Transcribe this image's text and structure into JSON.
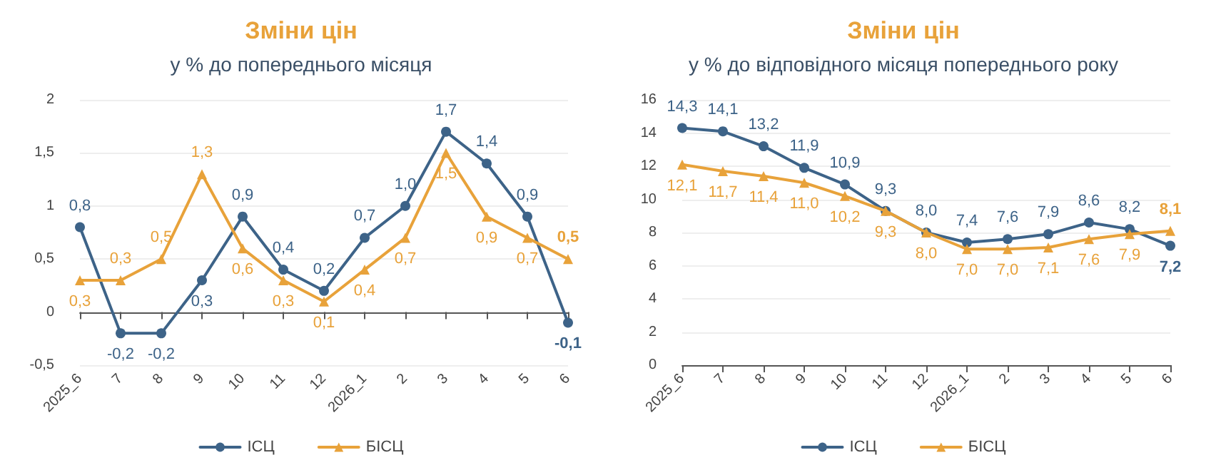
{
  "chart_data": [
    {
      "type": "line",
      "title": "Зміни цін",
      "subtitle": "у % до попереднього місяця",
      "categories": [
        "2025_6",
        "7",
        "8",
        "9",
        "10",
        "11",
        "12",
        "2026_1",
        "2",
        "3",
        "4",
        "5",
        "6"
      ],
      "series": [
        {
          "name": "ІСЦ",
          "color": "#3d6388",
          "marker": "circle",
          "values": [
            0.8,
            -0.2,
            -0.2,
            0.3,
            0.9,
            0.4,
            0.2,
            0.7,
            1.0,
            1.7,
            1.4,
            0.9,
            -0.1
          ],
          "value_labels": [
            "0,8",
            "-0,2",
            "-0,2",
            "0,3",
            "0,9",
            "0,4",
            "0,2",
            "0,7",
            "1,0",
            "1,7",
            "1,4",
            "0,9",
            "-0,1"
          ]
        },
        {
          "name": "БІСЦ",
          "color": "#e8a23a",
          "marker": "triangle",
          "values": [
            0.3,
            0.3,
            0.5,
            1.3,
            0.6,
            0.3,
            0.1,
            0.4,
            0.7,
            1.5,
            0.9,
            0.7,
            0.5
          ],
          "value_labels": [
            "0,3",
            "0,3",
            "0,5",
            "1,3",
            "0,6",
            "0,3",
            "0,1",
            "0,4",
            "0,7",
            "1,5",
            "0,9",
            "0,7",
            "0,5"
          ]
        }
      ],
      "ylim": [
        -0.5,
        2
      ],
      "yticks": [
        {
          "value": -0.5,
          "label": "-0,5"
        },
        0,
        {
          "value": 0.5,
          "label": "0,5"
        },
        1,
        {
          "value": 1.5,
          "label": "1,5"
        },
        2
      ],
      "grid": "y",
      "legend": "bottom"
    },
    {
      "type": "line",
      "title": "Зміни цін",
      "subtitle": "у % до відповідного місяця попереднього року",
      "categories": [
        "2025_6",
        "7",
        "8",
        "9",
        "10",
        "11",
        "12",
        "2026_1",
        "2",
        "3",
        "4",
        "5",
        "6"
      ],
      "series": [
        {
          "name": "ІСЦ",
          "color": "#3d6388",
          "marker": "circle",
          "values": [
            14.3,
            14.1,
            13.2,
            11.9,
            10.9,
            9.3,
            8.0,
            7.4,
            7.6,
            7.9,
            8.6,
            8.2,
            7.2
          ],
          "value_labels": [
            "14,3",
            "14,1",
            "13,2",
            "11,9",
            "10,9",
            "9,3",
            "8,0",
            "7,4",
            "7,6",
            "7,9",
            "8,6",
            "8,2",
            "7,2"
          ]
        },
        {
          "name": "БІСЦ",
          "color": "#e8a23a",
          "marker": "triangle",
          "values": [
            12.1,
            11.7,
            11.4,
            11.0,
            10.2,
            9.3,
            8.0,
            7.0,
            7.0,
            7.1,
            7.6,
            7.9,
            8.1
          ],
          "value_labels": [
            "12,1",
            "11,7",
            "11,4",
            "11,0",
            "10,2",
            "9,3",
            "8,0",
            "7,0",
            "7,0",
            "7,1",
            "7,6",
            "7,9",
            "8,1"
          ]
        }
      ],
      "ylim": [
        0,
        16
      ],
      "yticks": [
        0,
        2,
        4,
        6,
        8,
        10,
        12,
        14,
        16
      ],
      "grid": "y",
      "legend": "bottom"
    }
  ]
}
